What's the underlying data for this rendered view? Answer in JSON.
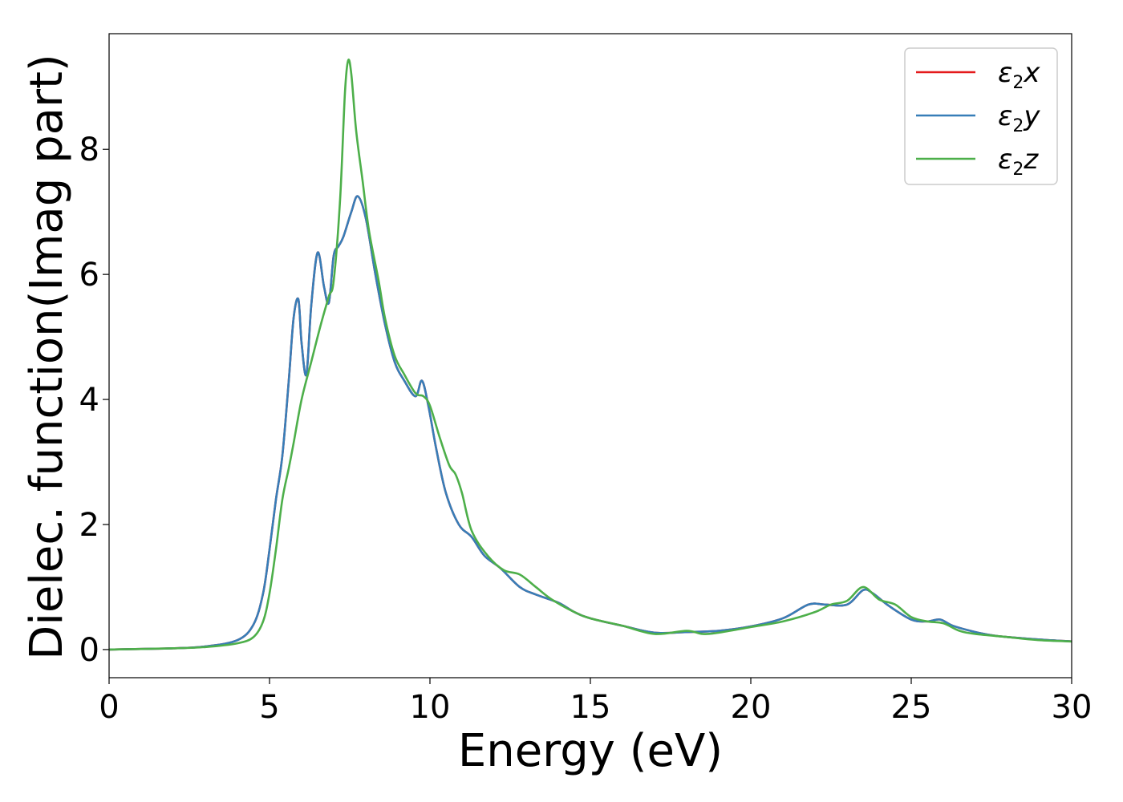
{
  "chart_data": {
    "type": "line",
    "title": "",
    "xlabel": "Energy (eV)",
    "ylabel": "Dielec. function(Imag part)",
    "xlim": [
      0,
      30
    ],
    "ylim": [
      -0.45,
      9.85
    ],
    "xticks": [
      0,
      5,
      10,
      15,
      20,
      25,
      30
    ],
    "yticks": [
      0,
      2,
      4,
      6,
      8
    ],
    "grid": false,
    "legend_position": "top-right",
    "series": [
      {
        "name": "ε2x",
        "color": "#e41a1c",
        "points": [
          [
            0,
            0.0
          ],
          [
            1,
            0.01
          ],
          [
            2,
            0.02
          ],
          [
            3,
            0.05
          ],
          [
            4,
            0.15
          ],
          [
            4.5,
            0.4
          ],
          [
            4.8,
            0.9
          ],
          [
            5.0,
            1.6
          ],
          [
            5.2,
            2.4
          ],
          [
            5.4,
            3.1
          ],
          [
            5.6,
            4.3
          ],
          [
            5.75,
            5.3
          ],
          [
            5.9,
            5.6
          ],
          [
            6.0,
            4.9
          ],
          [
            6.15,
            4.4
          ],
          [
            6.3,
            5.5
          ],
          [
            6.5,
            6.35
          ],
          [
            6.7,
            5.8
          ],
          [
            6.85,
            5.55
          ],
          [
            7.0,
            6.3
          ],
          [
            7.15,
            6.45
          ],
          [
            7.3,
            6.6
          ],
          [
            7.55,
            7.0
          ],
          [
            7.75,
            7.25
          ],
          [
            8.0,
            6.9
          ],
          [
            8.3,
            6.0
          ],
          [
            8.6,
            5.2
          ],
          [
            8.9,
            4.6
          ],
          [
            9.2,
            4.3
          ],
          [
            9.55,
            4.05
          ],
          [
            9.75,
            4.3
          ],
          [
            9.95,
            3.9
          ],
          [
            10.2,
            3.2
          ],
          [
            10.5,
            2.5
          ],
          [
            10.9,
            2.0
          ],
          [
            11.3,
            1.8
          ],
          [
            11.7,
            1.5
          ],
          [
            12.2,
            1.3
          ],
          [
            12.8,
            1.0
          ],
          [
            13.3,
            0.88
          ],
          [
            14.0,
            0.75
          ],
          [
            14.5,
            0.6
          ],
          [
            15.0,
            0.5
          ],
          [
            16.0,
            0.38
          ],
          [
            17.0,
            0.27
          ],
          [
            18.0,
            0.28
          ],
          [
            19.0,
            0.3
          ],
          [
            20.0,
            0.37
          ],
          [
            21.0,
            0.5
          ],
          [
            21.8,
            0.72
          ],
          [
            22.3,
            0.72
          ],
          [
            23.0,
            0.72
          ],
          [
            23.5,
            0.95
          ],
          [
            23.8,
            0.9
          ],
          [
            24.3,
            0.7
          ],
          [
            25.0,
            0.48
          ],
          [
            25.5,
            0.45
          ],
          [
            25.9,
            0.48
          ],
          [
            26.3,
            0.38
          ],
          [
            27.0,
            0.28
          ],
          [
            27.5,
            0.23
          ],
          [
            28.0,
            0.2
          ],
          [
            29.0,
            0.16
          ],
          [
            30.0,
            0.13
          ]
        ]
      },
      {
        "name": "ε2y",
        "color": "#377eb8",
        "points": [
          [
            0,
            0.0
          ],
          [
            1,
            0.01
          ],
          [
            2,
            0.02
          ],
          [
            3,
            0.05
          ],
          [
            4,
            0.15
          ],
          [
            4.5,
            0.4
          ],
          [
            4.8,
            0.9
          ],
          [
            5.0,
            1.6
          ],
          [
            5.2,
            2.4
          ],
          [
            5.4,
            3.1
          ],
          [
            5.6,
            4.3
          ],
          [
            5.75,
            5.3
          ],
          [
            5.9,
            5.6
          ],
          [
            6.0,
            4.9
          ],
          [
            6.15,
            4.4
          ],
          [
            6.3,
            5.5
          ],
          [
            6.5,
            6.35
          ],
          [
            6.7,
            5.8
          ],
          [
            6.85,
            5.55
          ],
          [
            7.0,
            6.3
          ],
          [
            7.15,
            6.45
          ],
          [
            7.3,
            6.6
          ],
          [
            7.55,
            7.0
          ],
          [
            7.75,
            7.25
          ],
          [
            8.0,
            6.9
          ],
          [
            8.3,
            6.0
          ],
          [
            8.6,
            5.2
          ],
          [
            8.9,
            4.6
          ],
          [
            9.2,
            4.3
          ],
          [
            9.55,
            4.05
          ],
          [
            9.75,
            4.3
          ],
          [
            9.95,
            3.9
          ],
          [
            10.2,
            3.2
          ],
          [
            10.5,
            2.5
          ],
          [
            10.9,
            2.0
          ],
          [
            11.3,
            1.8
          ],
          [
            11.7,
            1.5
          ],
          [
            12.2,
            1.3
          ],
          [
            12.8,
            1.0
          ],
          [
            13.3,
            0.88
          ],
          [
            14.0,
            0.75
          ],
          [
            14.5,
            0.6
          ],
          [
            15.0,
            0.5
          ],
          [
            16.0,
            0.38
          ],
          [
            17.0,
            0.27
          ],
          [
            18.0,
            0.28
          ],
          [
            19.0,
            0.3
          ],
          [
            20.0,
            0.37
          ],
          [
            21.0,
            0.5
          ],
          [
            21.8,
            0.72
          ],
          [
            22.3,
            0.72
          ],
          [
            23.0,
            0.72
          ],
          [
            23.5,
            0.95
          ],
          [
            23.8,
            0.9
          ],
          [
            24.3,
            0.7
          ],
          [
            25.0,
            0.48
          ],
          [
            25.5,
            0.45
          ],
          [
            25.9,
            0.48
          ],
          [
            26.3,
            0.38
          ],
          [
            27.0,
            0.28
          ],
          [
            27.5,
            0.23
          ],
          [
            28.0,
            0.2
          ],
          [
            29.0,
            0.16
          ],
          [
            30.0,
            0.13
          ]
        ]
      },
      {
        "name": "ε2z",
        "color": "#4daf4a",
        "points": [
          [
            0,
            0.0
          ],
          [
            1,
            0.01
          ],
          [
            2,
            0.02
          ],
          [
            3,
            0.04
          ],
          [
            4,
            0.1
          ],
          [
            4.5,
            0.2
          ],
          [
            4.8,
            0.45
          ],
          [
            5.0,
            0.9
          ],
          [
            5.2,
            1.6
          ],
          [
            5.4,
            2.4
          ],
          [
            5.6,
            2.9
          ],
          [
            5.75,
            3.3
          ],
          [
            6.0,
            4.0
          ],
          [
            6.3,
            4.6
          ],
          [
            6.6,
            5.2
          ],
          [
            6.85,
            5.65
          ],
          [
            7.0,
            5.9
          ],
          [
            7.2,
            7.2
          ],
          [
            7.35,
            8.9
          ],
          [
            7.45,
            9.42
          ],
          [
            7.55,
            9.2
          ],
          [
            7.7,
            8.3
          ],
          [
            7.9,
            7.5
          ],
          [
            8.1,
            6.7
          ],
          [
            8.4,
            5.9
          ],
          [
            8.6,
            5.3
          ],
          [
            8.9,
            4.7
          ],
          [
            9.2,
            4.4
          ],
          [
            9.55,
            4.1
          ],
          [
            9.8,
            4.05
          ],
          [
            10.0,
            3.9
          ],
          [
            10.3,
            3.4
          ],
          [
            10.6,
            2.95
          ],
          [
            10.8,
            2.8
          ],
          [
            11.0,
            2.5
          ],
          [
            11.3,
            1.9
          ],
          [
            11.8,
            1.5
          ],
          [
            12.3,
            1.27
          ],
          [
            12.8,
            1.2
          ],
          [
            13.3,
            1.0
          ],
          [
            13.8,
            0.8
          ],
          [
            14.5,
            0.6
          ],
          [
            15.0,
            0.5
          ],
          [
            16.0,
            0.38
          ],
          [
            17.0,
            0.25
          ],
          [
            18.0,
            0.3
          ],
          [
            18.5,
            0.25
          ],
          [
            19.0,
            0.27
          ],
          [
            20.0,
            0.36
          ],
          [
            21.0,
            0.45
          ],
          [
            22.0,
            0.6
          ],
          [
            22.5,
            0.72
          ],
          [
            23.0,
            0.78
          ],
          [
            23.5,
            1.0
          ],
          [
            24.0,
            0.8
          ],
          [
            24.5,
            0.72
          ],
          [
            25.0,
            0.52
          ],
          [
            25.5,
            0.45
          ],
          [
            26.0,
            0.42
          ],
          [
            26.5,
            0.3
          ],
          [
            27.0,
            0.25
          ],
          [
            28.0,
            0.2
          ],
          [
            29.0,
            0.15
          ],
          [
            30.0,
            0.13
          ]
        ]
      }
    ]
  }
}
